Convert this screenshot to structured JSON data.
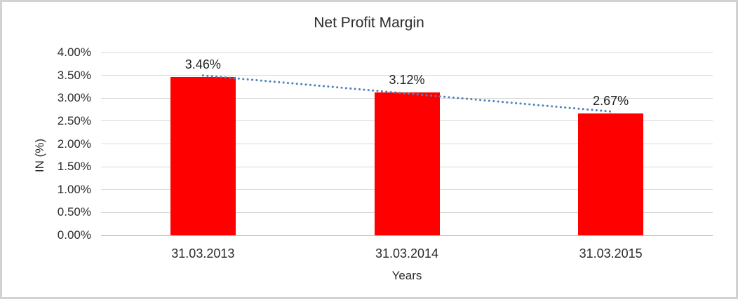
{
  "chart_data": {
    "type": "bar",
    "title": "Net Profit Margin",
    "categories": [
      "31.03.2013",
      "31.03.2014",
      "31.03.2015"
    ],
    "values": [
      3.46,
      3.12,
      2.67
    ],
    "data_labels": [
      "3.46%",
      "3.12%",
      "2.67%"
    ],
    "xlabel": "Years",
    "ylabel": "IN (%)",
    "ylim": [
      0,
      4
    ],
    "ytick_step": 0.5,
    "ytick_labels": [
      "0.00%",
      "0.50%",
      "1.00%",
      "1.50%",
      "2.00%",
      "2.50%",
      "3.00%",
      "3.50%",
      "4.00%"
    ],
    "grid": true,
    "legend": "none",
    "bar_color": "#ff0000",
    "trendline": {
      "type": "linear",
      "style": "dotted",
      "color": "#4f81bd",
      "from_value": 3.46,
      "to_value": 2.67
    }
  }
}
